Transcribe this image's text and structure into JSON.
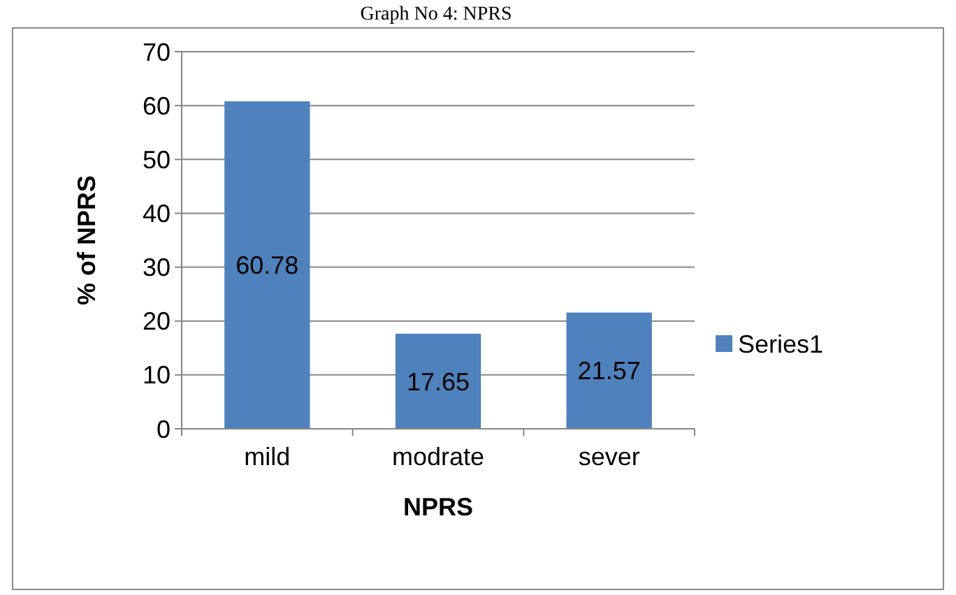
{
  "chart_data": {
    "type": "bar",
    "title": "Graph No 4: NPRS",
    "xlabel": "NPRS",
    "ylabel": "% of NPRS",
    "categories": [
      "mild",
      "modrate",
      "sever"
    ],
    "series": [
      {
        "name": "Series1",
        "color": "#4f81bd",
        "values": [
          60.78,
          17.65,
          21.57
        ]
      }
    ],
    "ylim": [
      0,
      70
    ],
    "yticks": [
      0,
      10,
      20,
      30,
      40,
      50,
      60,
      70
    ],
    "grid": "y",
    "legend": "right",
    "data_labels": true
  }
}
